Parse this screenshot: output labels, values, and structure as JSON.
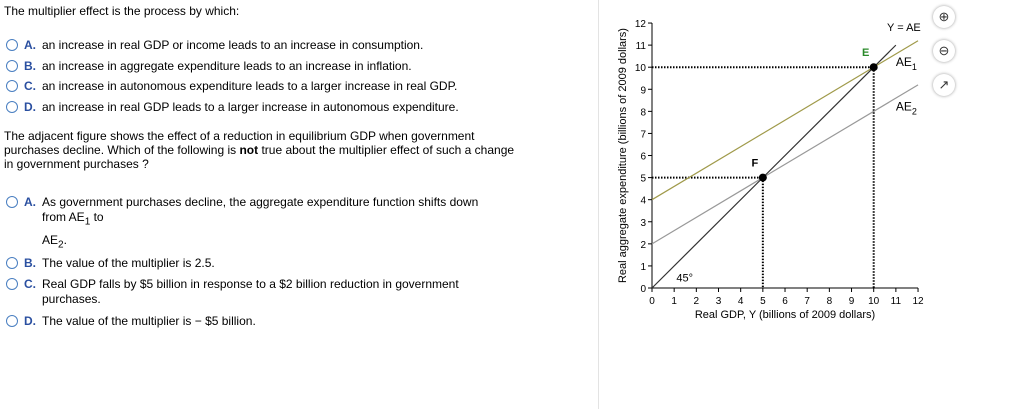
{
  "q1": {
    "prompt": "The multiplier effect is the process by which:",
    "options": [
      {
        "letter": "A.",
        "text": "an increase in real GDP or income  leads to an  increase in consumption."
      },
      {
        "letter": "B.",
        "text": "an increase in aggregate expenditure  leads to an  increase in inflation."
      },
      {
        "letter": "C.",
        "text": "an increase in autonomous expenditure leads to a larger increase in real GDP."
      },
      {
        "letter": "D.",
        "text": "an increase in real GDP leads to a larger increase in autonomous expenditure."
      }
    ]
  },
  "q2": {
    "prompt_a": "The adjacent figure shows the effect of a reduction in equilibrium GDP when government purchases decline. Which of the following is ",
    "prompt_bold": "not",
    "prompt_b": " true about the multiplier effect of such a change in government purchases ?",
    "options": [
      {
        "letter": "A.",
        "text": "As government purchases decline, the aggregate expenditure function shifts down from AE",
        "sub1": "1",
        "mid": " to",
        "line2": "AE",
        "sub2": "2",
        "end": "."
      },
      {
        "letter": "B.",
        "text": "The value of the multiplier is 2.5."
      },
      {
        "letter": "C.",
        "text": "Real GDP falls by $5 billion  in response to a $2 billion reduction in government purchases."
      },
      {
        "letter": "D.",
        "text": "The value of the multiplier is  − $5 billion."
      }
    ]
  },
  "tools": [
    "zoom-in-icon",
    "zoom-out-icon",
    "pop-out-icon"
  ],
  "chart_data": {
    "type": "line",
    "xlabel": "Real GDP, Y (billions of 2009 dollars)",
    "ylabel": "Real aggregate expenditure (billions of 2009 dollars)",
    "xlim": [
      0,
      12
    ],
    "ylim": [
      0,
      12
    ],
    "xticks": [
      0,
      1,
      2,
      3,
      4,
      5,
      6,
      7,
      8,
      9,
      10,
      11,
      12
    ],
    "yticks": [
      0,
      1,
      2,
      3,
      4,
      5,
      6,
      7,
      8,
      9,
      10,
      11,
      12
    ],
    "series": [
      {
        "name": "Y = AE",
        "x": [
          0,
          11
        ],
        "y": [
          0,
          11
        ],
        "color": "#333333"
      },
      {
        "name": "AE1",
        "x": [
          0,
          12
        ],
        "y": [
          4,
          11.2
        ],
        "color": "#a09a4a"
      },
      {
        "name": "AE2",
        "x": [
          0,
          12
        ],
        "y": [
          2,
          9.2
        ],
        "color": "#999999"
      }
    ],
    "points": [
      {
        "label": "E",
        "x": 10,
        "y": 10,
        "color": "#2a8a2a"
      },
      {
        "label": "F",
        "x": 5,
        "y": 5,
        "color": "#000000"
      }
    ],
    "annotation": "45°"
  }
}
